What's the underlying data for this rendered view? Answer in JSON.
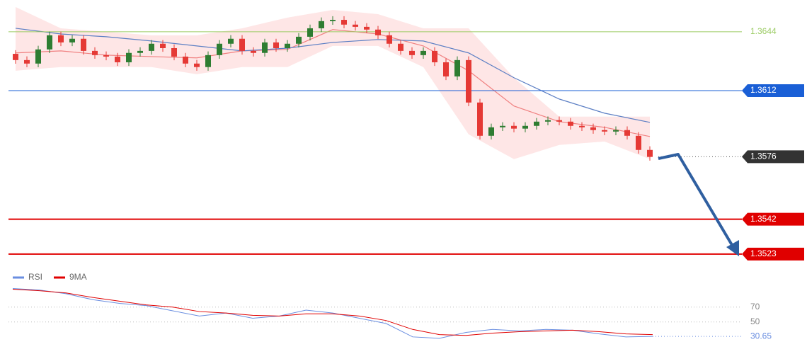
{
  "chart_data": [
    {
      "type": "candlestick",
      "up_color": "#2e7d32",
      "down_color": "#e53935",
      "open": [
        1.3632,
        1.36286,
        1.36267,
        1.36344,
        1.36421,
        1.36382,
        1.36402,
        1.36336,
        1.36313,
        1.36305,
        1.36274,
        1.36325,
        1.36336,
        1.36375,
        1.36351,
        1.36305,
        1.36267,
        1.36248,
        1.36313,
        1.36375,
        1.36402,
        1.36336,
        1.36325,
        1.36382,
        1.36351,
        1.36375,
        1.36413,
        1.36459,
        1.36498,
        1.36505,
        1.36479,
        1.36467,
        1.36452,
        1.36421,
        1.36375,
        1.36336,
        1.36313,
        1.36336,
        1.36274,
        1.36197,
        1.36286,
        1.36055,
        1.35874,
        1.3592,
        1.35928,
        1.35913,
        1.35928,
        1.35951,
        1.35959,
        1.35951,
        1.35928,
        1.3592,
        1.35905,
        1.35897,
        1.35905,
        1.35874,
        1.35797
      ],
      "high": [
        1.3634,
        1.36306,
        1.36364,
        1.36441,
        1.36441,
        1.36422,
        1.36422,
        1.36356,
        1.36333,
        1.36325,
        1.36345,
        1.36356,
        1.36395,
        1.36395,
        1.36371,
        1.36325,
        1.36287,
        1.36333,
        1.36395,
        1.36422,
        1.36422,
        1.36356,
        1.36402,
        1.36402,
        1.36395,
        1.36433,
        1.36479,
        1.36518,
        1.36525,
        1.36525,
        1.36499,
        1.36487,
        1.36472,
        1.36441,
        1.36395,
        1.36356,
        1.36356,
        1.36356,
        1.36294,
        1.36306,
        1.36306,
        1.36075,
        1.3594,
        1.35948,
        1.35948,
        1.35948,
        1.35971,
        1.35979,
        1.35979,
        1.35971,
        1.35948,
        1.3594,
        1.35925,
        1.35925,
        1.35925,
        1.35894,
        1.35817
      ],
      "low": [
        1.36266,
        1.36247,
        1.36247,
        1.36324,
        1.36362,
        1.36362,
        1.36316,
        1.36293,
        1.36285,
        1.36254,
        1.36254,
        1.36305,
        1.36316,
        1.36331,
        1.36285,
        1.36247,
        1.36228,
        1.36228,
        1.36293,
        1.36355,
        1.36316,
        1.36305,
        1.36305,
        1.36331,
        1.36331,
        1.36355,
        1.36393,
        1.36439,
        1.36478,
        1.36459,
        1.36447,
        1.36432,
        1.36401,
        1.36355,
        1.36316,
        1.36293,
        1.36293,
        1.36254,
        1.36177,
        1.36177,
        1.36035,
        1.35854,
        1.35854,
        1.359,
        1.35893,
        1.35893,
        1.35908,
        1.35931,
        1.35931,
        1.35908,
        1.359,
        1.35885,
        1.35877,
        1.35877,
        1.35854,
        1.35777,
        1.35739
      ],
      "close": [
        1.36286,
        1.36267,
        1.36344,
        1.36421,
        1.36382,
        1.36402,
        1.36336,
        1.36313,
        1.36305,
        1.36274,
        1.36325,
        1.36336,
        1.36375,
        1.36351,
        1.36305,
        1.36267,
        1.36248,
        1.36313,
        1.36375,
        1.36402,
        1.36336,
        1.36325,
        1.36382,
        1.36351,
        1.36375,
        1.36413,
        1.36459,
        1.36498,
        1.36505,
        1.36479,
        1.36467,
        1.36452,
        1.36421,
        1.36375,
        1.36336,
        1.36313,
        1.36336,
        1.36274,
        1.36197,
        1.36286,
        1.36055,
        1.35874,
        1.3592,
        1.35928,
        1.35913,
        1.35928,
        1.35951,
        1.35959,
        1.35951,
        1.35928,
        1.3592,
        1.35905,
        1.35897,
        1.35905,
        1.35874,
        1.35797,
        1.35759
      ],
      "band_color": "#fdd5d5",
      "band_upper": [
        1.36575,
        1.36459,
        1.3644,
        1.36421,
        1.36421,
        1.36459,
        1.36517,
        1.36559,
        1.36536,
        1.36459,
        1.36459,
        1.3619,
        1.35978,
        1.35978,
        1.35978
      ],
      "band_lower": [
        1.36228,
        1.36248,
        1.36248,
        1.36248,
        1.36209,
        1.36248,
        1.36248,
        1.36363,
        1.36363,
        1.36248,
        1.35882,
        1.35747,
        1.35824,
        1.35843,
        1.35747
      ],
      "averages": [
        {
          "color": "#f08080",
          "values": [
            1.36325,
            1.36336,
            1.36313,
            1.36305,
            1.36298,
            1.36336,
            1.36344,
            1.36452,
            1.36428,
            1.36363,
            1.36228,
            1.36036,
            1.35951,
            1.3592,
            1.3587
          ]
        },
        {
          "color": "#5c7fc4",
          "values": [
            1.36459,
            1.36428,
            1.36413,
            1.3639,
            1.36363,
            1.36336,
            1.36351,
            1.36382,
            1.36398,
            1.3639,
            1.36325,
            1.3619,
            1.36074,
            1.35997,
            1.35947
          ]
        }
      ],
      "levels": [
        {
          "value": 1.3644,
          "color": "#9ccc65",
          "style": "text"
        },
        {
          "value": 1.3612,
          "color": "#1a5fd6",
          "style": "box"
        },
        {
          "value": 1.3576,
          "color": "#333333",
          "style": "current"
        },
        {
          "value": 1.3542,
          "color": "#e00000",
          "style": "box"
        },
        {
          "value": 1.3523,
          "color": "#e00000",
          "style": "box"
        }
      ],
      "ylim": [
        1.35168,
        1.36613
      ]
    },
    {
      "type": "line",
      "series": [
        {
          "name": "RSI",
          "color": "#6a8ee0",
          "values": [
            95,
            93,
            88,
            80,
            75,
            72,
            65,
            58,
            62,
            55,
            58,
            66,
            62,
            55,
            48,
            30,
            28,
            36,
            40,
            38,
            40,
            39,
            34,
            30,
            30.65
          ]
        },
        {
          "name": "9MA",
          "color": "#e00000",
          "values": [
            94,
            92,
            89,
            83,
            78,
            73,
            70,
            64,
            62,
            59,
            58,
            61,
            61,
            58,
            52,
            40,
            33,
            32,
            35,
            37,
            38,
            39,
            37,
            34,
            33
          ]
        }
      ],
      "ylim": [
        7,
        104
      ],
      "yticks": [
        70,
        50
      ]
    }
  ]
}
